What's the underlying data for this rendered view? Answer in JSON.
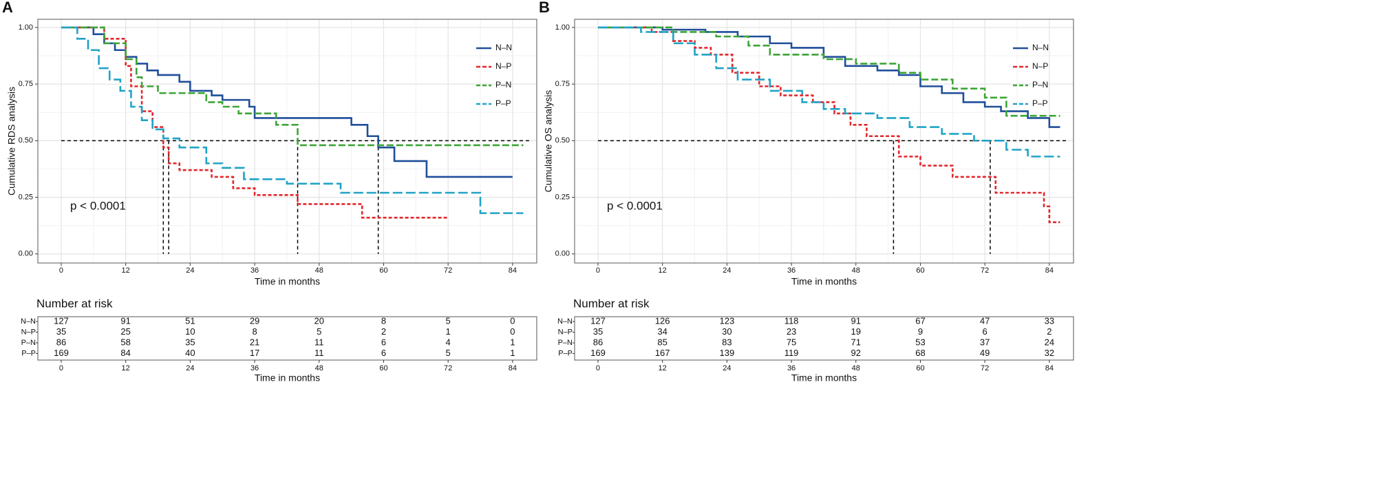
{
  "chart_data": [
    {
      "type": "step",
      "panel": "A",
      "ylabel": "Cumulative RDS analysis",
      "xlabel": "Time in months",
      "annotation": "p < 0.0001",
      "legend": "top right",
      "grid": true,
      "xlim": [
        -4.35,
        88.5
      ],
      "xticks": [
        0,
        12,
        24,
        36,
        48,
        60,
        72,
        84
      ],
      "ylim": [
        -0.04,
        1.036
      ],
      "yticks": [
        {
          "value": 0,
          "label": "0.00"
        },
        0.25,
        {
          "value": 0.5,
          "label": "0.50"
        },
        0.75,
        {
          "value": 1,
          "label": "1.00"
        }
      ],
      "hline": 0.5,
      "vlines": [
        19,
        20,
        44,
        59
      ],
      "series": [
        {
          "name": "N–N",
          "color": "#1f4e9a",
          "line_style": "solid",
          "x": [
            0,
            6,
            8,
            10,
            12,
            14,
            16,
            18,
            22,
            24,
            28,
            30,
            35,
            36,
            54,
            57,
            59,
            62,
            68,
            84
          ],
          "values": [
            1,
            0.97,
            0.93,
            0.9,
            0.87,
            0.84,
            0.81,
            0.79,
            0.76,
            0.72,
            0.7,
            0.68,
            0.65,
            0.6,
            0.57,
            0.52,
            0.47,
            0.41,
            0.34,
            0.34
          ]
        },
        {
          "name": "N–P",
          "color": "#e3262b",
          "line_style": "dotted",
          "x": [
            0,
            8,
            12,
            13,
            15,
            17,
            19,
            20,
            22,
            28,
            32,
            36,
            44,
            56,
            72
          ],
          "values": [
            1,
            0.95,
            0.83,
            0.74,
            0.63,
            0.56,
            0.47,
            0.4,
            0.37,
            0.34,
            0.29,
            0.26,
            0.22,
            0.16,
            0.16
          ]
        },
        {
          "name": "P–N",
          "color": "#3ca535",
          "line_style": "dashed",
          "x": [
            0,
            8,
            12,
            14,
            15,
            18,
            27,
            30,
            33,
            40,
            44,
            86
          ],
          "values": [
            1,
            0.93,
            0.86,
            0.78,
            0.74,
            0.71,
            0.67,
            0.65,
            0.62,
            0.57,
            0.48,
            0.48
          ]
        },
        {
          "name": "P–P",
          "color": "#1fa3c6",
          "line_style": "longdash",
          "x": [
            0,
            3,
            5,
            7,
            9,
            11,
            13,
            15,
            17,
            19,
            22,
            27,
            30,
            34,
            42,
            52,
            78,
            86
          ],
          "values": [
            1,
            0.95,
            0.9,
            0.82,
            0.77,
            0.72,
            0.65,
            0.59,
            0.55,
            0.51,
            0.47,
            0.4,
            0.38,
            0.33,
            0.31,
            0.27,
            0.18,
            0.18
          ]
        }
      ],
      "risk_table": {
        "title": "Number at risk",
        "xlabel": "Time in months",
        "rows": [
          {
            "name": "N–N",
            "color": "#1f4e9a",
            "values": [
              127,
              91,
              51,
              29,
              20,
              8,
              5,
              0
            ]
          },
          {
            "name": "N–P",
            "color": "#e3262b",
            "values": [
              35,
              25,
              10,
              8,
              5,
              2,
              1,
              0
            ]
          },
          {
            "name": "P–N",
            "color": "#3ca535",
            "values": [
              86,
              58,
              35,
              21,
              11,
              6,
              4,
              1
            ]
          },
          {
            "name": "P–P",
            "color": "#1fa3c6",
            "values": [
              169,
              84,
              40,
              17,
              11,
              6,
              5,
              1
            ]
          }
        ]
      }
    },
    {
      "type": "step",
      "panel": "B",
      "ylabel": "Cumulative OS analysis",
      "xlabel": "Time in months",
      "annotation": "p < 0.0001",
      "legend": "top right",
      "grid": true,
      "xlim": [
        -4.35,
        88.5
      ],
      "xticks": [
        0,
        12,
        24,
        36,
        48,
        60,
        72,
        84
      ],
      "ylim": [
        -0.04,
        1.036
      ],
      "yticks": [
        {
          "value": 0,
          "label": "0.00"
        },
        0.25,
        {
          "value": 0.5,
          "label": "0.50"
        },
        0.75,
        {
          "value": 1,
          "label": "1.00"
        }
      ],
      "hline": 0.5,
      "vlines": [
        55,
        73
      ],
      "series": [
        {
          "name": "N–N",
          "color": "#1f4e9a",
          "line_style": "solid",
          "x": [
            0,
            12,
            20,
            26,
            32,
            36,
            42,
            46,
            52,
            56,
            60,
            64,
            68,
            72,
            75,
            80,
            84,
            86
          ],
          "values": [
            1,
            0.99,
            0.98,
            0.96,
            0.93,
            0.91,
            0.87,
            0.83,
            0.81,
            0.79,
            0.74,
            0.71,
            0.67,
            0.65,
            0.63,
            0.6,
            0.56,
            0.56
          ]
        },
        {
          "name": "N–P",
          "color": "#e3262b",
          "line_style": "dotted",
          "x": [
            0,
            10,
            14,
            18,
            21,
            25,
            30,
            34,
            40,
            44,
            47,
            50,
            56,
            60,
            66,
            74,
            83,
            84,
            86
          ],
          "values": [
            1,
            0.98,
            0.94,
            0.91,
            0.88,
            0.8,
            0.74,
            0.7,
            0.67,
            0.62,
            0.57,
            0.52,
            0.43,
            0.39,
            0.34,
            0.27,
            0.21,
            0.14,
            0.14
          ]
        },
        {
          "name": "P–N",
          "color": "#3ca535",
          "line_style": "dashed",
          "x": [
            0,
            14,
            22,
            28,
            32,
            42,
            48,
            56,
            60,
            66,
            72,
            76,
            86
          ],
          "values": [
            1,
            0.98,
            0.96,
            0.92,
            0.88,
            0.86,
            0.84,
            0.8,
            0.77,
            0.73,
            0.69,
            0.61,
            0.61
          ]
        },
        {
          "name": "P–P",
          "color": "#1fa3c6",
          "line_style": "longdash",
          "x": [
            0,
            8,
            14,
            18,
            22,
            26,
            32,
            38,
            42,
            46,
            52,
            58,
            64,
            70,
            76,
            80,
            86
          ],
          "values": [
            1,
            0.98,
            0.93,
            0.88,
            0.82,
            0.77,
            0.72,
            0.67,
            0.64,
            0.62,
            0.6,
            0.56,
            0.53,
            0.5,
            0.46,
            0.43,
            0.43
          ]
        }
      ],
      "risk_table": {
        "title": "Number at risk",
        "xlabel": "Time in months",
        "rows": [
          {
            "name": "N–N",
            "color": "#1f4e9a",
            "values": [
              127,
              126,
              123,
              118,
              91,
              67,
              47,
              33
            ]
          },
          {
            "name": "N–P",
            "color": "#e3262b",
            "values": [
              35,
              34,
              30,
              23,
              19,
              9,
              6,
              2
            ]
          },
          {
            "name": "P–N",
            "color": "#3ca535",
            "values": [
              86,
              85,
              83,
              75,
              71,
              53,
              37,
              24
            ]
          },
          {
            "name": "P–P",
            "color": "#1fa3c6",
            "values": [
              169,
              167,
              139,
              119,
              92,
              68,
              49,
              32
            ]
          }
        ]
      }
    }
  ]
}
